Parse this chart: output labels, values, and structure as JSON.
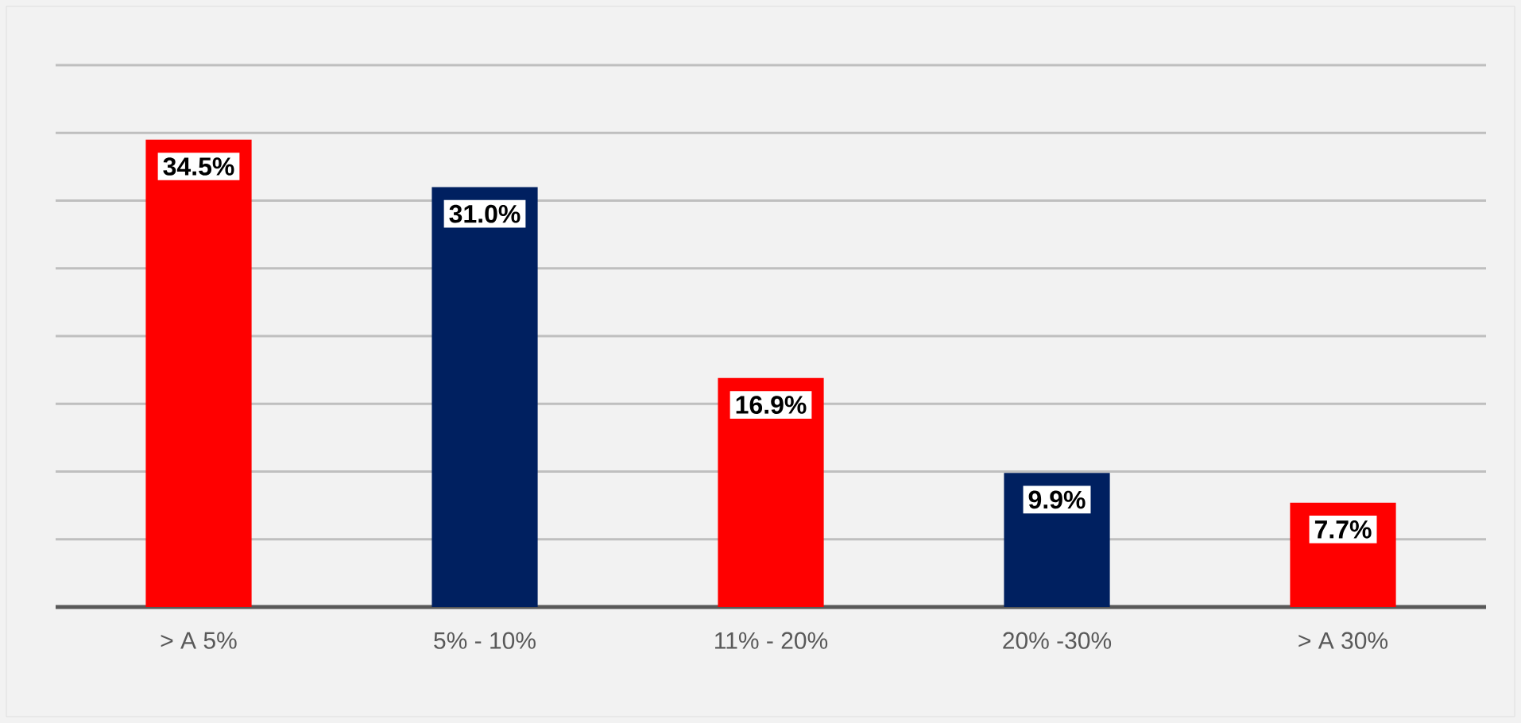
{
  "chart_data": {
    "type": "bar",
    "categories": [
      "> A 5%",
      "5% - 10%",
      "11% - 20%",
      "20% -30%",
      "> A 30%"
    ],
    "values": [
      34.5,
      31.0,
      16.9,
      9.9,
      7.7
    ],
    "colors": [
      "#ff0000",
      "#002060",
      "#ff0000",
      "#002060",
      "#ff0000"
    ],
    "value_labels": [
      "34.5%",
      "31.0%",
      "16.9%",
      "9.9%",
      "7.7%"
    ],
    "ylim": [
      0,
      40
    ],
    "yticks": [
      {
        "value": 0,
        "label": null
      },
      {
        "value": 5,
        "label": null
      },
      {
        "value": 10,
        "label": null
      },
      {
        "value": 15,
        "label": null
      },
      {
        "value": 20,
        "label": null
      },
      {
        "value": 25,
        "label": null
      },
      {
        "value": 30,
        "label": null
      },
      {
        "value": 35,
        "label": null
      },
      {
        "value": 40,
        "label": null
      }
    ],
    "tick_labels": "x",
    "grid": "y"
  }
}
